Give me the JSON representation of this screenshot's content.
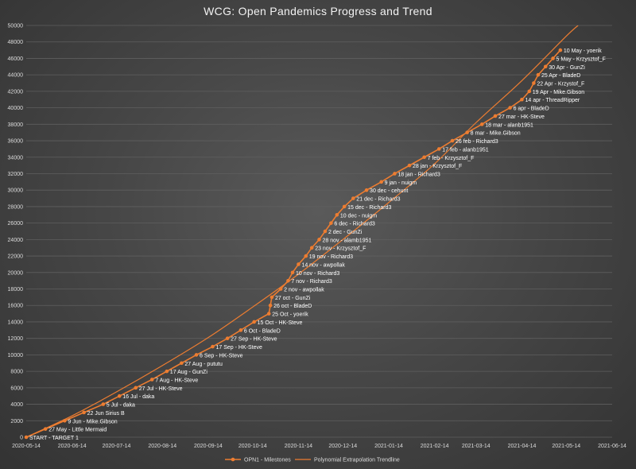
{
  "chart_data": {
    "type": "line",
    "title": "WCG: Open Pandemics Progress and Trend",
    "xlim": [
      "2020-05-14",
      "2021-06-14"
    ],
    "ylim": [
      0,
      50000
    ],
    "y_ticks": [
      0,
      2000,
      4000,
      6000,
      8000,
      10000,
      12000,
      14000,
      16000,
      18000,
      20000,
      22000,
      24000,
      26000,
      28000,
      30000,
      32000,
      34000,
      36000,
      38000,
      40000,
      42000,
      44000,
      46000,
      48000,
      50000
    ],
    "x_ticks": [
      "2020-05-14",
      "2020-06-14",
      "2020-07-14",
      "2020-08-14",
      "2020-09-14",
      "2020-10-14",
      "2020-11-14",
      "2020-12-14",
      "2021-01-14",
      "2021-02-14",
      "2021-03-14",
      "2021-04-14",
      "2021-05-14",
      "2021-06-14"
    ],
    "grid": true,
    "legend_position": "bottom",
    "colors": {
      "series": "#ed7d31",
      "trend": "#ed7d31"
    },
    "series": [
      {
        "name": "OPN1 - Milestones",
        "points": [
          {
            "x": "2020-05-14",
            "y": 0,
            "label": "START - TARGET 1"
          },
          {
            "x": "2020-05-27",
            "y": 1000,
            "label": "27 May - Little Mermaid"
          },
          {
            "x": "2020-06-09",
            "y": 2000,
            "label": "9 Jun - Mike.Gibson"
          },
          {
            "x": "2020-06-22",
            "y": 3000,
            "label": "22 Jun Sirius B"
          },
          {
            "x": "2020-07-05",
            "y": 4000,
            "label": "5 Jul - daka"
          },
          {
            "x": "2020-07-16",
            "y": 5000,
            "label": "16 Jul - daka"
          },
          {
            "x": "2020-07-27",
            "y": 6000,
            "label": "27 Jul - HK-Steve"
          },
          {
            "x": "2020-08-07",
            "y": 7000,
            "label": "7 Aug - HK-Steve"
          },
          {
            "x": "2020-08-17",
            "y": 8000,
            "label": "17 Aug - GunZi"
          },
          {
            "x": "2020-08-27",
            "y": 9000,
            "label": "27 Aug - pututu"
          },
          {
            "x": "2020-09-06",
            "y": 10000,
            "label": "6 Sep - HK-Steve"
          },
          {
            "x": "2020-09-17",
            "y": 11000,
            "label": "17 Sep - HK-Steve"
          },
          {
            "x": "2020-09-27",
            "y": 12000,
            "label": "27 Sep - HK-Steve"
          },
          {
            "x": "2020-10-06",
            "y": 13000,
            "label": "6 Oct - BladeD"
          },
          {
            "x": "2020-10-15",
            "y": 14000,
            "label": "15 Oct - HK-Steve"
          },
          {
            "x": "2020-10-25",
            "y": 15000,
            "label": "25 Oct - yoerik"
          },
          {
            "x": "2020-10-26",
            "y": 16000,
            "label": "26 oct - BladeD"
          },
          {
            "x": "2020-10-27",
            "y": 17000,
            "label": "27 oct - GunZi"
          },
          {
            "x": "2020-11-02",
            "y": 18000,
            "label": "2 nov - awpollak"
          },
          {
            "x": "2020-11-07",
            "y": 19000,
            "label": "7 nov - Richard3"
          },
          {
            "x": "2020-11-10",
            "y": 20000,
            "label": "10 nov - Richard3"
          },
          {
            "x": "2020-11-14",
            "y": 21000,
            "label": "14 nov - awpollak"
          },
          {
            "x": "2020-11-19",
            "y": 22000,
            "label": "19 nov - Richard3"
          },
          {
            "x": "2020-11-23",
            "y": 23000,
            "label": "23 nov - Krzysztof_F"
          },
          {
            "x": "2020-11-28",
            "y": 24000,
            "label": "28 nov - alamb1951"
          },
          {
            "x": "2020-12-02",
            "y": 25000,
            "label": "2 dec - GunZi"
          },
          {
            "x": "2020-12-06",
            "y": 26000,
            "label": "6 dec - Richard3"
          },
          {
            "x": "2020-12-10",
            "y": 27000,
            "label": "10 dec - nuigm"
          },
          {
            "x": "2020-12-15",
            "y": 28000,
            "label": "15 dec - Richard3"
          },
          {
            "x": "2020-12-21",
            "y": 29000,
            "label": "21 dec - Richard3"
          },
          {
            "x": "2020-12-30",
            "y": 30000,
            "label": "30 dec - cehunt"
          },
          {
            "x": "2021-01-09",
            "y": 31000,
            "label": "9 jan - nuigm"
          },
          {
            "x": "2021-01-18",
            "y": 32000,
            "label": "18 jan - Richard3"
          },
          {
            "x": "2021-01-28",
            "y": 33000,
            "label": "28 jan - Krzysztof_F"
          },
          {
            "x": "2021-02-07",
            "y": 34000,
            "label": "7 feb - Krzysztof_F"
          },
          {
            "x": "2021-02-17",
            "y": 35000,
            "label": "17 feb - alanb1951"
          },
          {
            "x": "2021-02-26",
            "y": 36000,
            "label": "26 feb - Richard3"
          },
          {
            "x": "2021-03-08",
            "y": 37000,
            "label": "8 mar - Mike.Gibson"
          },
          {
            "x": "2021-03-18",
            "y": 38000,
            "label": "18 mar - alanb1951"
          },
          {
            "x": "2021-03-27",
            "y": 39000,
            "label": "27 mar - HK-Steve"
          },
          {
            "x": "2021-04-06",
            "y": 40000,
            "label": "6 apr - BladeD"
          },
          {
            "x": "2021-04-14",
            "y": 41000,
            "label": "14 apr - ThreadRipper"
          },
          {
            "x": "2021-04-19",
            "y": 42000,
            "label": "19 Apr - Mike.Gibson"
          },
          {
            "x": "2021-04-22",
            "y": 43000,
            "label": "22 Apr - Krzystof_F"
          },
          {
            "x": "2021-04-25",
            "y": 44000,
            "label": "25 Apr - BladeD"
          },
          {
            "x": "2021-04-30",
            "y": 45000,
            "label": "30 Apr - GunZi"
          },
          {
            "x": "2021-05-05",
            "y": 46000,
            "label": "5 May - Krzysztof_F"
          },
          {
            "x": "2021-05-10",
            "y": 47000,
            "label": "10 May - yoerik"
          }
        ]
      },
      {
        "name": "Polynomial Extrapolation Trendline",
        "trend": true,
        "points": [
          {
            "x": "2020-05-14",
            "y": 0
          },
          {
            "x": "2020-06-14",
            "y": 2600
          },
          {
            "x": "2020-07-14",
            "y": 5500
          },
          {
            "x": "2020-08-14",
            "y": 8700
          },
          {
            "x": "2020-09-14",
            "y": 12100
          },
          {
            "x": "2020-10-14",
            "y": 15800
          },
          {
            "x": "2020-11-14",
            "y": 19800
          },
          {
            "x": "2020-12-14",
            "y": 24000
          },
          {
            "x": "2021-01-14",
            "y": 28500
          },
          {
            "x": "2021-02-14",
            "y": 33200
          },
          {
            "x": "2021-03-14",
            "y": 38200
          },
          {
            "x": "2021-04-14",
            "y": 43300
          },
          {
            "x": "2021-05-14",
            "y": 48700
          },
          {
            "x": "2021-05-22",
            "y": 50000
          }
        ]
      }
    ]
  }
}
